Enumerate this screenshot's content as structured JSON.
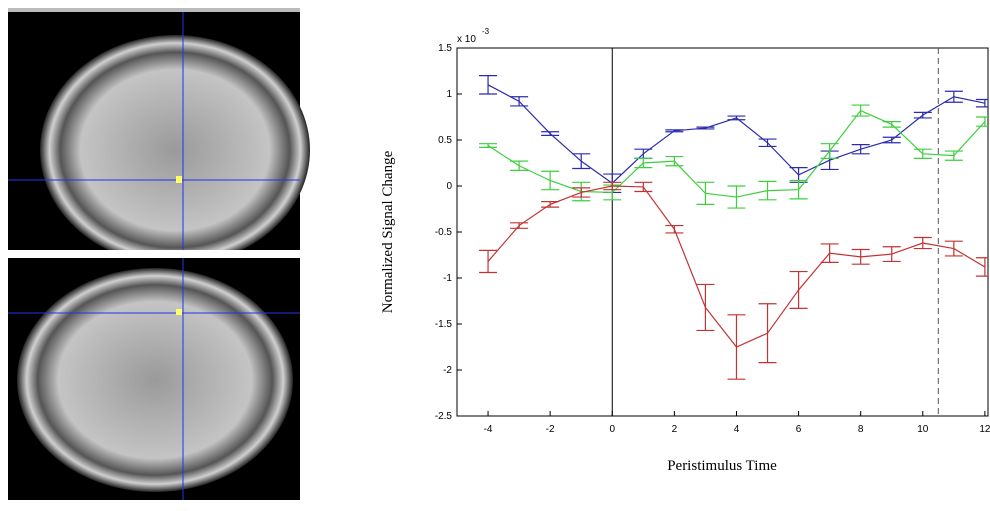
{
  "chart_data": {
    "type": "errorbar-line",
    "xlabel": "Peristimulus Time",
    "ylabel": "Normalized Signal Change",
    "axis_multiplier": "x 10",
    "axis_exponent": "-3",
    "x": [
      -4,
      -3,
      -2,
      -1,
      0,
      1,
      2,
      3,
      4,
      5,
      6,
      7,
      8,
      9,
      10,
      11,
      12
    ],
    "series": [
      {
        "color": "#2b2bb0",
        "values": [
          1.1,
          0.92,
          0.57,
          0.27,
          0.03,
          0.35,
          0.6,
          0.63,
          0.74,
          0.47,
          0.12,
          0.28,
          0.4,
          0.5,
          0.77,
          0.97,
          0.9
        ],
        "errors": [
          0.1,
          0.05,
          0.02,
          0.08,
          0.1,
          0.05,
          0.01,
          0.01,
          0.02,
          0.04,
          0.08,
          0.1,
          0.05,
          0.03,
          0.03,
          0.06,
          0.04
        ]
      },
      {
        "color": "#3dcf3d",
        "values": [
          0.44,
          0.22,
          0.06,
          -0.06,
          -0.07,
          0.25,
          0.27,
          -0.08,
          -0.12,
          -0.05,
          -0.04,
          0.38,
          0.82,
          0.67,
          0.35,
          0.33,
          0.7
        ],
        "errors": [
          0.02,
          0.05,
          0.1,
          0.1,
          0.08,
          0.05,
          0.05,
          0.12,
          0.12,
          0.1,
          0.1,
          0.08,
          0.06,
          0.03,
          0.05,
          0.05,
          0.05
        ]
      },
      {
        "color": "#c43232",
        "values": [
          -0.82,
          -0.43,
          -0.2,
          -0.07,
          0.0,
          -0.01,
          -0.47,
          -1.32,
          -1.75,
          -1.6,
          -1.13,
          -0.73,
          -0.77,
          -0.74,
          -0.62,
          -0.68,
          -0.88
        ],
        "errors": [
          0.12,
          0.03,
          0.03,
          0.05,
          0.04,
          0.05,
          0.04,
          0.25,
          0.35,
          0.32,
          0.2,
          0.1,
          0.08,
          0.08,
          0.06,
          0.08,
          0.1
        ]
      }
    ],
    "vlines": [
      {
        "x": 0,
        "style": "solid"
      },
      {
        "x": 10.5,
        "style": "dashed"
      }
    ],
    "xlim": [
      -5,
      12.1
    ],
    "ylim": [
      -2.5,
      1.5
    ],
    "xticks": [
      -4,
      -2,
      0,
      2,
      4,
      6,
      8,
      10,
      12
    ],
    "yticks": [
      -2.5,
      -2,
      -1.5,
      -1,
      -0.5,
      0,
      0.5,
      1,
      1.5
    ]
  }
}
